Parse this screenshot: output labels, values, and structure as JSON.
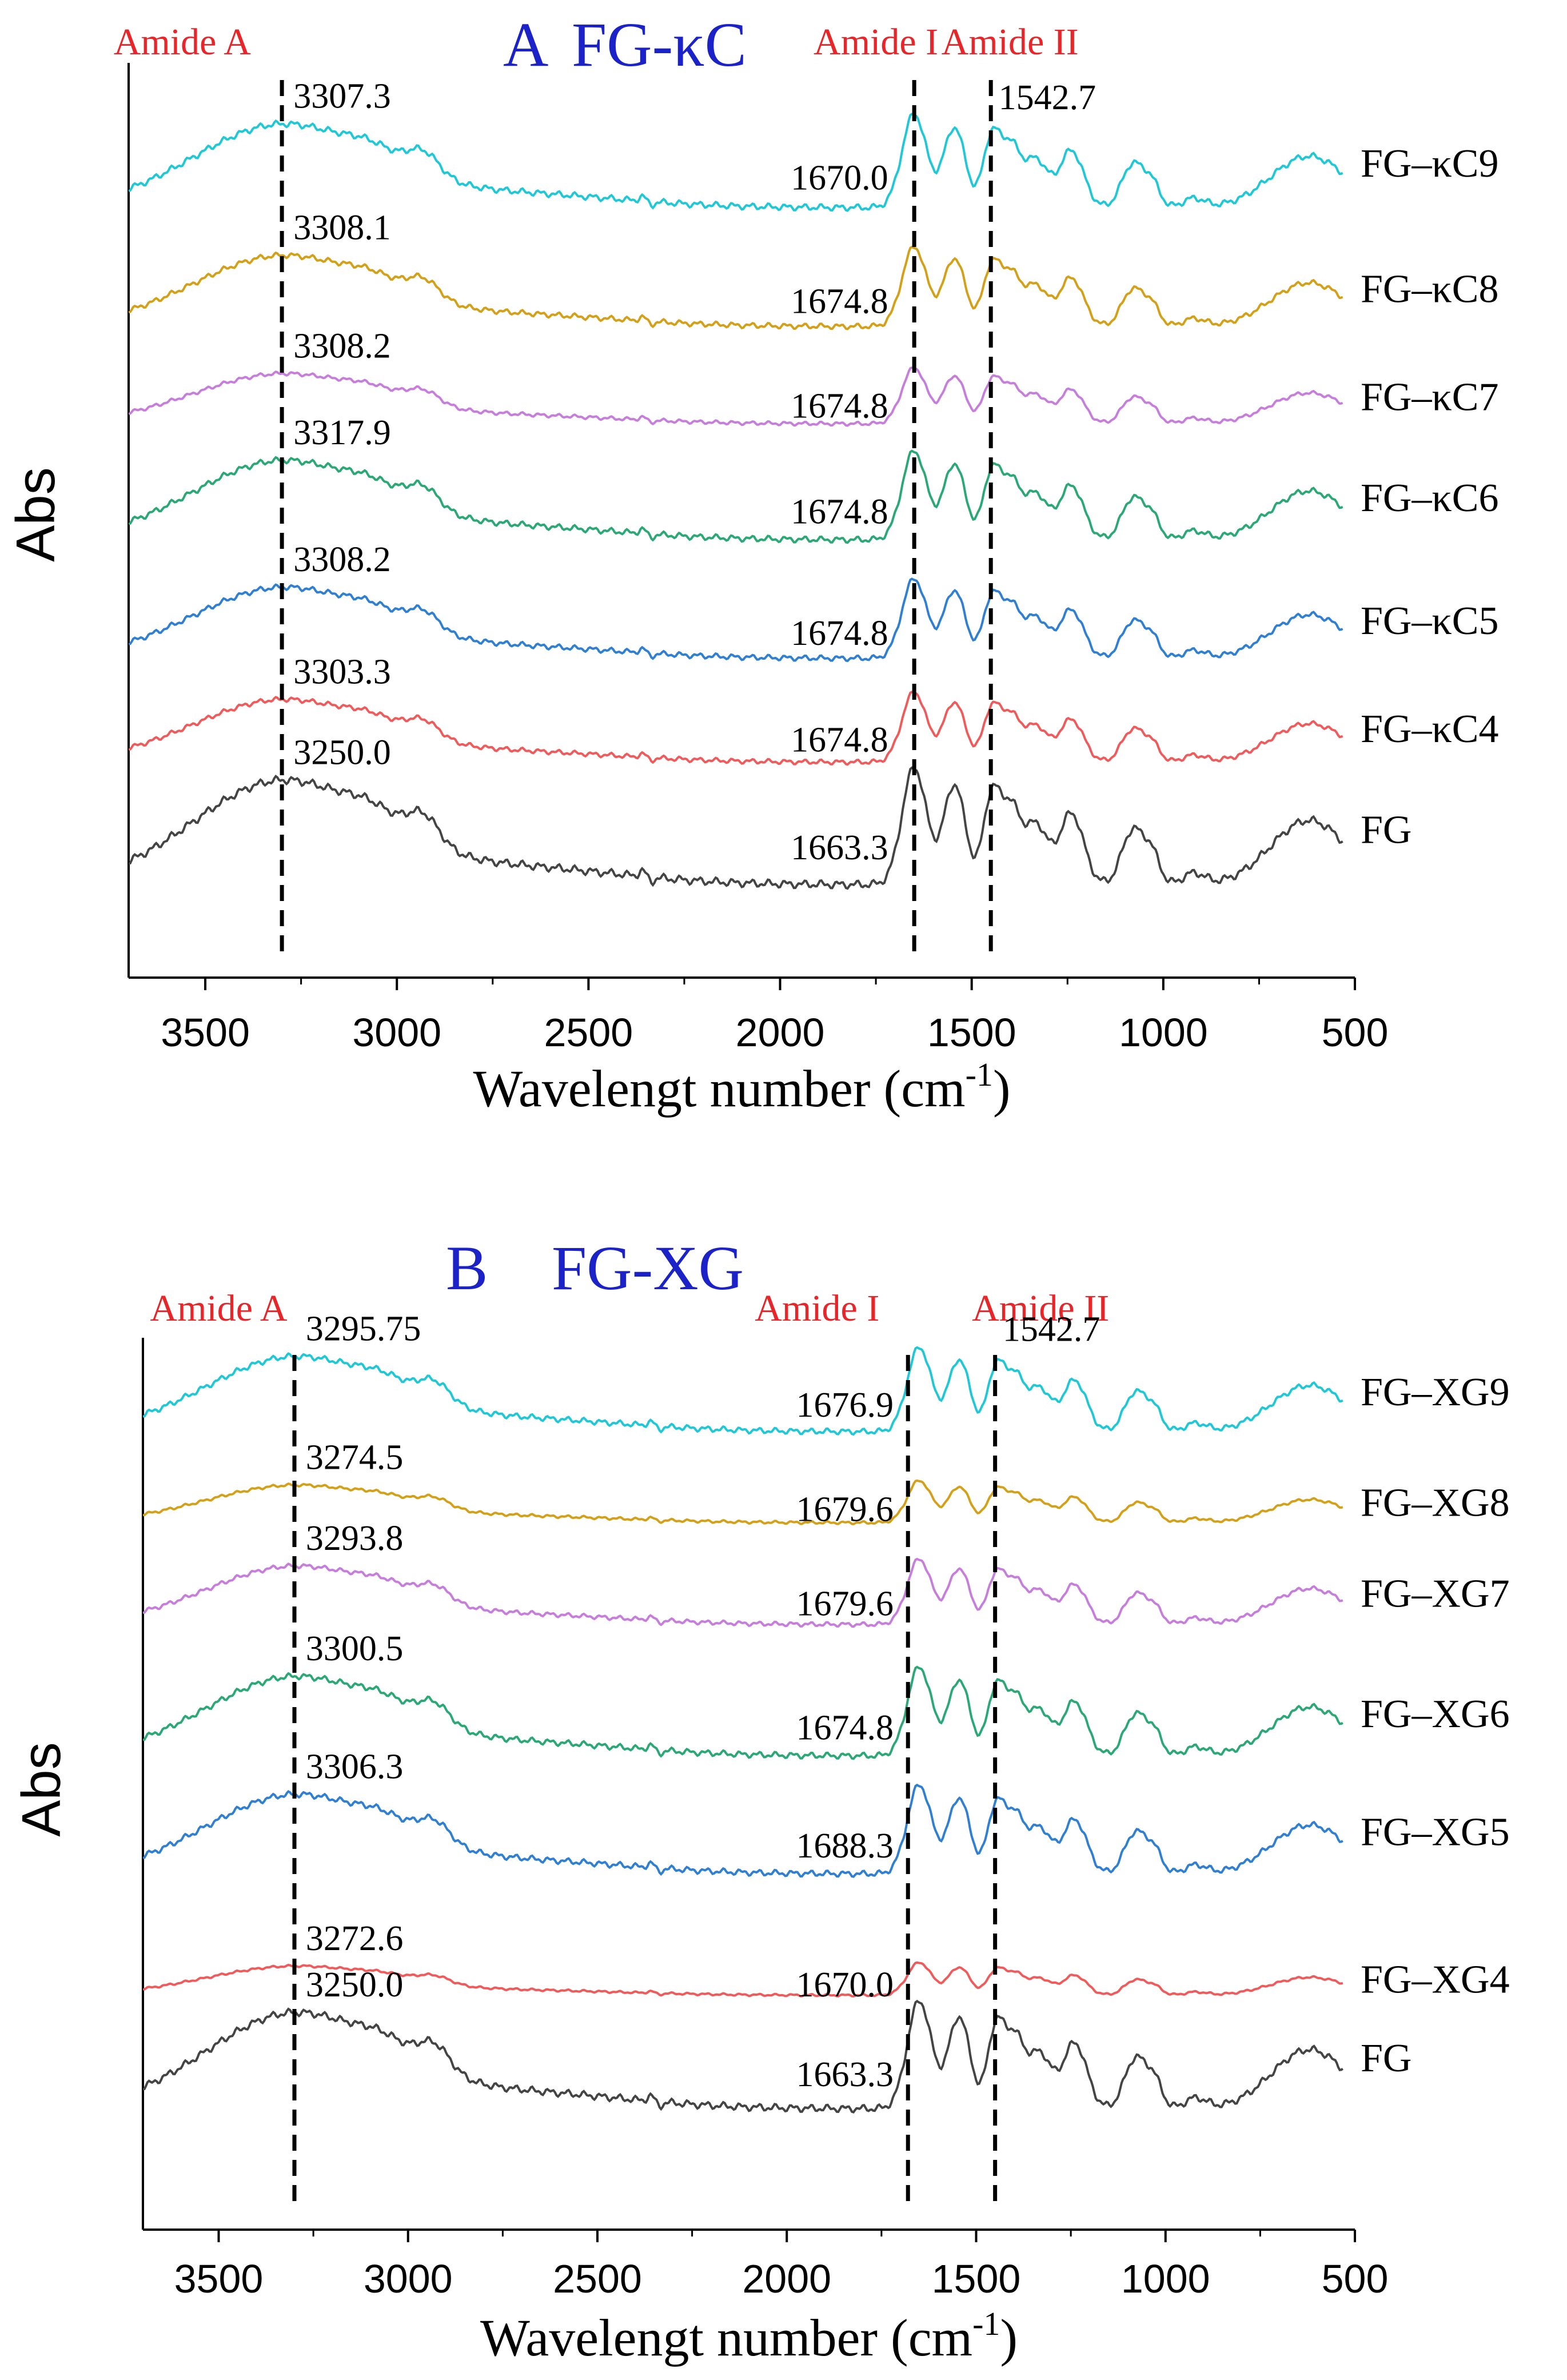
{
  "chart_data": [
    {
      "panel": "A",
      "type": "line",
      "title_letter": "A",
      "title": "FG-κC",
      "xlabel": "Wavelengt number (cm",
      "xlabel_sup": "-1",
      "xlabel_end": ")",
      "ylabel": "Abs",
      "xlim": [
        3700,
        500
      ],
      "xticks": [
        3500,
        3000,
        2500,
        2000,
        1500,
        1000,
        500
      ],
      "amide_labels": [
        {
          "text": "Amide A",
          "x": 3560
        },
        {
          "text": "Amide I",
          "x": 1750
        },
        {
          "text": "Amide II",
          "x": 1400
        }
      ],
      "vlines": [
        3300,
        1650,
        1450
      ],
      "series": [
        {
          "name": "FG–κC9",
          "color": "#1fc8d6",
          "baseline": 92,
          "scale": 1.0,
          "amideA_label": "3307.3",
          "amideI_label": "1670.0",
          "amideII_label": "1542.7"
        },
        {
          "name": "FG–κC8",
          "color": "#d4a017",
          "baseline": 76,
          "scale": 0.85,
          "amideA_label": "3308.1",
          "amideI_label": "1674.8",
          "amideII_label": ""
        },
        {
          "name": "FG–κC7",
          "color": "#c77ddb",
          "baseline": 63,
          "scale": 0.6,
          "amideA_label": "3308.2",
          "amideI_label": "1674.8",
          "amideII_label": ""
        },
        {
          "name": "FG–κC6",
          "color": "#2aa876",
          "baseline": 47,
          "scale": 0.95,
          "amideA_label": "3317.9",
          "amideI_label": "1674.8",
          "amideII_label": ""
        },
        {
          "name": "FG–κC5",
          "color": "#2f7fd3",
          "baseline": 31,
          "scale": 0.85,
          "amideA_label": "3308.2",
          "amideI_label": "1674.8",
          "amideII_label": ""
        },
        {
          "name": "FG–κC4",
          "color": "#f15a5a",
          "baseline": 17,
          "scale": 0.75,
          "amideA_label": "3303.3",
          "amideI_label": "1674.8",
          "amideII_label": ""
        },
        {
          "name": "FG",
          "color": "#444444",
          "baseline": 0,
          "scale": 1.25,
          "amideA_label": "3250.0",
          "amideI_label": "1663.3",
          "amideII_label": ""
        }
      ]
    },
    {
      "panel": "B",
      "type": "line",
      "title_letter": "B",
      "title": "FG-XG",
      "xlabel": "Wavelengt number (cm",
      "xlabel_sup": "-1",
      "xlabel_end": ")",
      "ylabel": "Abs",
      "xlim": [
        3700,
        500
      ],
      "xticks": [
        3500,
        3000,
        2500,
        2000,
        1500,
        1000,
        500
      ],
      "amide_labels": [
        {
          "text": "Amide A",
          "x": 3500
        },
        {
          "text": "Amide I",
          "x": 1920
        },
        {
          "text": "Amide II",
          "x": 1330
        }
      ],
      "vlines": [
        3300,
        1680,
        1450
      ],
      "series": [
        {
          "name": "FG–XG9",
          "color": "#1fc8d6",
          "baseline": 92,
          "scale": 0.9,
          "amideA_label": "3295.75",
          "amideI_label": "1676.9",
          "amideII_label": "1542.7"
        },
        {
          "name": "FG–XG8",
          "color": "#d4a017",
          "baseline": 80,
          "scale": 0.45,
          "amideA_label": "3274.5",
          "amideI_label": "1679.6",
          "amideII_label": ""
        },
        {
          "name": "FG–XG7",
          "color": "#c77ddb",
          "baseline": 66,
          "scale": 0.7,
          "amideA_label": "3293.8",
          "amideI_label": "1679.6",
          "amideII_label": ""
        },
        {
          "name": "FG–XG6",
          "color": "#2aa876",
          "baseline": 48,
          "scale": 0.95,
          "amideA_label": "3300.5",
          "amideI_label": "1674.8",
          "amideII_label": ""
        },
        {
          "name": "FG–XG5",
          "color": "#2f7fd3",
          "baseline": 32,
          "scale": 0.95,
          "amideA_label": "3306.3",
          "amideI_label": "1688.3",
          "amideII_label": ""
        },
        {
          "name": "FG–XG4",
          "color": "#f15a5a",
          "baseline": 16,
          "scale": 0.35,
          "amideA_label": "3272.6",
          "amideI_label": "1670.0",
          "amideII_label": ""
        },
        {
          "name": "FG",
          "color": "#444444",
          "baseline": 0,
          "scale": 1.15,
          "amideA_label": "3250.0",
          "amideI_label": "1663.3",
          "amideII_label": ""
        }
      ]
    }
  ]
}
